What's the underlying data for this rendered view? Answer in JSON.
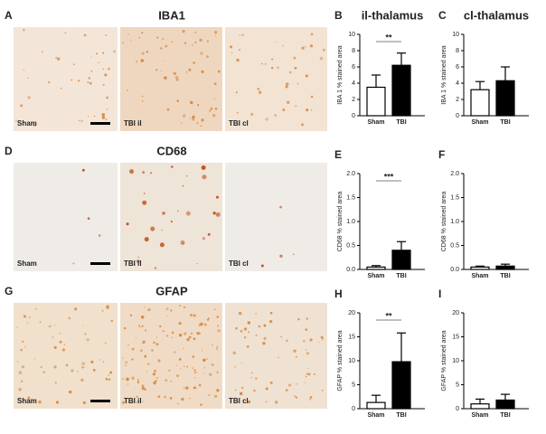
{
  "figure": {
    "panels": [
      {
        "letter": "A",
        "title": "IBA1",
        "images": [
          "Sham",
          "TBI il",
          "TBI cl"
        ]
      },
      {
        "letter": "D",
        "title": "CD68",
        "images": [
          "Sham",
          "TBI il",
          "TBI cl"
        ]
      },
      {
        "letter": "G",
        "title": "GFAP",
        "images": [
          "Sham",
          "TBI il",
          "TBI cl"
        ]
      }
    ]
  },
  "chart_data": [
    {
      "type": "bar",
      "letter": "B",
      "title": "il-thalamus",
      "y_label": "IBA 1 % stained area",
      "categories": [
        "Sham",
        "TBI"
      ],
      "values": [
        3.5,
        6.2
      ],
      "errors": [
        1.5,
        1.5
      ],
      "colors": [
        "#ffffff",
        "#000000"
      ],
      "ylim": [
        0,
        10
      ],
      "yticks": [
        0,
        2,
        4,
        6,
        8,
        10
      ],
      "annotation": "**"
    },
    {
      "type": "bar",
      "letter": "C",
      "title": "cl-thalamus",
      "y_label": "IBA 1 % stained area",
      "categories": [
        "Sham",
        "TBI"
      ],
      "values": [
        3.2,
        4.3
      ],
      "errors": [
        1.0,
        1.7
      ],
      "colors": [
        "#ffffff",
        "#000000"
      ],
      "ylim": [
        0,
        10
      ],
      "yticks": [
        0,
        2,
        4,
        6,
        8,
        10
      ]
    },
    {
      "type": "bar",
      "letter": "E",
      "y_label": "CD68 % stained area",
      "categories": [
        "Sham",
        "TBI"
      ],
      "values": [
        0.05,
        0.4
      ],
      "errors": [
        0.03,
        0.18
      ],
      "colors": [
        "#ffffff",
        "#000000"
      ],
      "ylim": [
        0,
        2
      ],
      "yticks": [
        {
          "value": 0,
          "label": "0.0"
        },
        0.5,
        {
          "value": 1,
          "label": "1.0"
        },
        1.5,
        {
          "value": 2,
          "label": "2.0"
        }
      ],
      "annotation": "***"
    },
    {
      "type": "bar",
      "letter": "F",
      "y_label": "CD68 % stained area",
      "categories": [
        "Sham",
        "TBI"
      ],
      "values": [
        0.05,
        0.07
      ],
      "errors": [
        0.02,
        0.04
      ],
      "colors": [
        "#ffffff",
        "#000000"
      ],
      "ylim": [
        0,
        2
      ],
      "yticks": [
        {
          "value": 0,
          "label": "0.0"
        },
        0.5,
        {
          "value": 1,
          "label": "1.0"
        },
        1.5,
        {
          "value": 2,
          "label": "2.0"
        }
      ]
    },
    {
      "type": "bar",
      "letter": "H",
      "y_label": "GFAP % stained area",
      "categories": [
        "Sham",
        "TBI"
      ],
      "values": [
        1.3,
        9.8
      ],
      "errors": [
        1.5,
        6.0
      ],
      "colors": [
        "#ffffff",
        "#000000"
      ],
      "ylim": [
        0,
        20
      ],
      "yticks": [
        0,
        5,
        10,
        15,
        20
      ],
      "annotation": "**"
    },
    {
      "type": "bar",
      "letter": "I",
      "y_label": "GFAP % stained area",
      "categories": [
        "Sham",
        "TBI"
      ],
      "values": [
        1.0,
        1.8
      ],
      "errors": [
        1.0,
        1.2
      ],
      "colors": [
        "#ffffff",
        "#000000"
      ],
      "ylim": [
        0,
        20
      ],
      "yticks": [
        0,
        5,
        10,
        15,
        20
      ]
    }
  ]
}
